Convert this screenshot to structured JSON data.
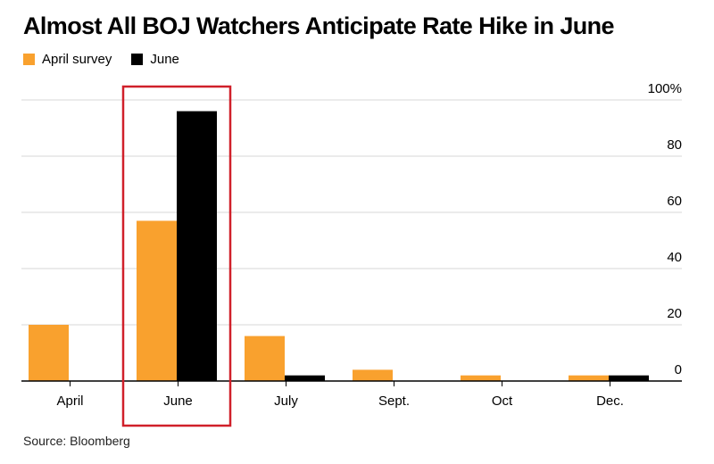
{
  "title": "Almost All BOJ Watchers Anticipate Rate Hike in June",
  "source": "Source: Bloomberg",
  "colors": {
    "april": "#f9a12e",
    "june": "#000000",
    "grid": "#d7d7d7",
    "highlight": "#d0202a"
  },
  "chart_data": {
    "type": "bar",
    "title": "Almost All BOJ Watchers Anticipate Rate Hike in June",
    "xlabel": "",
    "ylabel": "",
    "categories": [
      "April",
      "June",
      "July",
      "Sept.",
      "Oct",
      "Dec."
    ],
    "series": [
      {
        "name": "April survey",
        "values": [
          20,
          57,
          16,
          4,
          2,
          2
        ]
      },
      {
        "name": "June",
        "values": [
          0,
          96,
          2,
          0,
          0,
          2
        ]
      }
    ],
    "yticks": [
      "0",
      "20",
      "40",
      "60",
      "80",
      "100%"
    ],
    "ylim": [
      0,
      100
    ],
    "grid": true,
    "y_axis_side": "right",
    "legend_position": "top-left",
    "highlight_category": "June"
  }
}
